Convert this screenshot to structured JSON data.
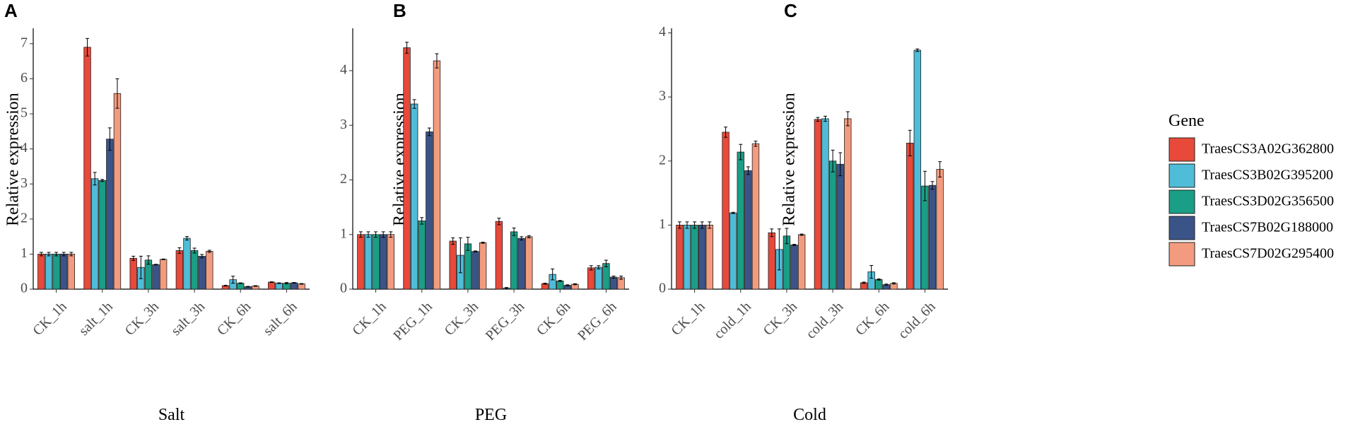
{
  "legend": {
    "title": "Gene",
    "entries": [
      {
        "name": "TraesCS3A02G362800",
        "color": "#E8493A"
      },
      {
        "name": "TraesCS3B02G395200",
        "color": "#4FBCD8"
      },
      {
        "name": "TraesCS3D02G356500",
        "color": "#1A9E85"
      },
      {
        "name": "TraesCS7B02G188000",
        "color": "#3B5488"
      },
      {
        "name": "TraesCS7D02G295400",
        "color": "#F39B7F"
      }
    ]
  },
  "chart_data": [
    {
      "type": "bar",
      "panel": "A",
      "title": "",
      "xlabel": "Salt",
      "ylabel": "Relative expression",
      "ylim": [
        0,
        7.4
      ],
      "yticks": [
        0,
        1,
        2,
        3,
        4,
        5,
        6,
        7
      ],
      "categories": [
        "CK_1h",
        "salt_1h",
        "CK_3h",
        "salt_3h",
        "CK_6h",
        "salt_6h"
      ],
      "series": [
        {
          "name": "TraesCS3A02G362800",
          "values": [
            1.0,
            6.9,
            0.88,
            1.1,
            0.1,
            0.2
          ],
          "errors": [
            0.05,
            0.25,
            0.06,
            0.08,
            0.01,
            0.01
          ]
        },
        {
          "name": "TraesCS3B02G395200",
          "values": [
            1.0,
            3.15,
            0.62,
            1.45,
            0.27,
            0.17
          ],
          "errors": [
            0.05,
            0.18,
            0.32,
            0.05,
            0.1,
            0.01
          ]
        },
        {
          "name": "TraesCS3D02G356500",
          "values": [
            1.0,
            3.1,
            0.83,
            1.1,
            0.17,
            0.17
          ],
          "errors": [
            0.05,
            0.03,
            0.12,
            0.07,
            0.01,
            0.02
          ]
        },
        {
          "name": "TraesCS7B02G188000",
          "values": [
            1.0,
            4.28,
            0.7,
            0.94,
            0.07,
            0.18
          ],
          "errors": [
            0.05,
            0.32,
            0.01,
            0.05,
            0.01,
            0.01
          ]
        },
        {
          "name": "TraesCS7D02G295400",
          "values": [
            1.0,
            5.58,
            0.85,
            1.08,
            0.09,
            0.15
          ],
          "errors": [
            0.05,
            0.42,
            0.01,
            0.03,
            0.01,
            0.01
          ]
        }
      ]
    },
    {
      "type": "bar",
      "panel": "B",
      "title": "",
      "xlabel": "PEG",
      "ylabel": "Relative expression",
      "ylim": [
        0,
        4.75
      ],
      "yticks": [
        0,
        1,
        2,
        3,
        4
      ],
      "categories": [
        "CK_1h",
        "PEG_1h",
        "CK_3h",
        "PEG_3h",
        "CK_6h",
        "PEG_6h"
      ],
      "series": [
        {
          "name": "TraesCS3A02G362800",
          "values": [
            1.0,
            4.42,
            0.88,
            1.24,
            0.1,
            0.39
          ],
          "errors": [
            0.05,
            0.1,
            0.06,
            0.06,
            0.01,
            0.04
          ]
        },
        {
          "name": "TraesCS3B02G395200",
          "values": [
            1.0,
            3.39,
            0.62,
            0.02,
            0.27,
            0.4
          ],
          "errors": [
            0.05,
            0.08,
            0.32,
            0.01,
            0.1,
            0.03
          ]
        },
        {
          "name": "TraesCS3D02G356500",
          "values": [
            1.0,
            1.25,
            0.83,
            1.05,
            0.15,
            0.47
          ],
          "errors": [
            0.05,
            0.06,
            0.12,
            0.07,
            0.01,
            0.06
          ]
        },
        {
          "name": "TraesCS7B02G188000",
          "values": [
            1.0,
            2.88,
            0.69,
            0.93,
            0.07,
            0.22
          ],
          "errors": [
            0.05,
            0.07,
            0.01,
            0.03,
            0.01,
            0.02
          ]
        },
        {
          "name": "TraesCS7D02G295400",
          "values": [
            1.0,
            4.18,
            0.85,
            0.96,
            0.09,
            0.21
          ],
          "errors": [
            0.05,
            0.13,
            0.01,
            0.02,
            0.01,
            0.03
          ]
        }
      ]
    },
    {
      "type": "bar",
      "panel": "C",
      "title": "",
      "xlabel": "Cold",
      "ylabel": "Relative expression",
      "ylim": [
        0,
        4.05
      ],
      "yticks": [
        0,
        1,
        2,
        3,
        4
      ],
      "categories": [
        "CK_1h",
        "cold_1h",
        "CK_3h",
        "cold_3h",
        "CK_6h",
        "cold_6h"
      ],
      "series": [
        {
          "name": "TraesCS3A02G362800",
          "values": [
            1.0,
            2.45,
            0.88,
            2.65,
            0.1,
            2.28
          ],
          "errors": [
            0.05,
            0.08,
            0.06,
            0.03,
            0.01,
            0.2
          ]
        },
        {
          "name": "TraesCS3B02G395200",
          "values": [
            1.0,
            1.19,
            0.62,
            2.66,
            0.27,
            3.73
          ],
          "errors": [
            0.05,
            0.01,
            0.32,
            0.04,
            0.1,
            0.02
          ]
        },
        {
          "name": "TraesCS3D02G356500",
          "values": [
            1.0,
            2.14,
            0.83,
            2.0,
            0.15,
            1.61
          ],
          "errors": [
            0.05,
            0.12,
            0.12,
            0.17,
            0.01,
            0.23
          ]
        },
        {
          "name": "TraesCS7B02G188000",
          "values": [
            1.0,
            1.85,
            0.69,
            1.95,
            0.07,
            1.62
          ],
          "errors": [
            0.05,
            0.06,
            0.01,
            0.18,
            0.01,
            0.06
          ]
        },
        {
          "name": "TraesCS7D02G295400",
          "values": [
            1.0,
            2.27,
            0.85,
            2.66,
            0.09,
            1.87
          ],
          "errors": [
            0.05,
            0.04,
            0.01,
            0.11,
            0.01,
            0.12
          ]
        }
      ]
    }
  ]
}
